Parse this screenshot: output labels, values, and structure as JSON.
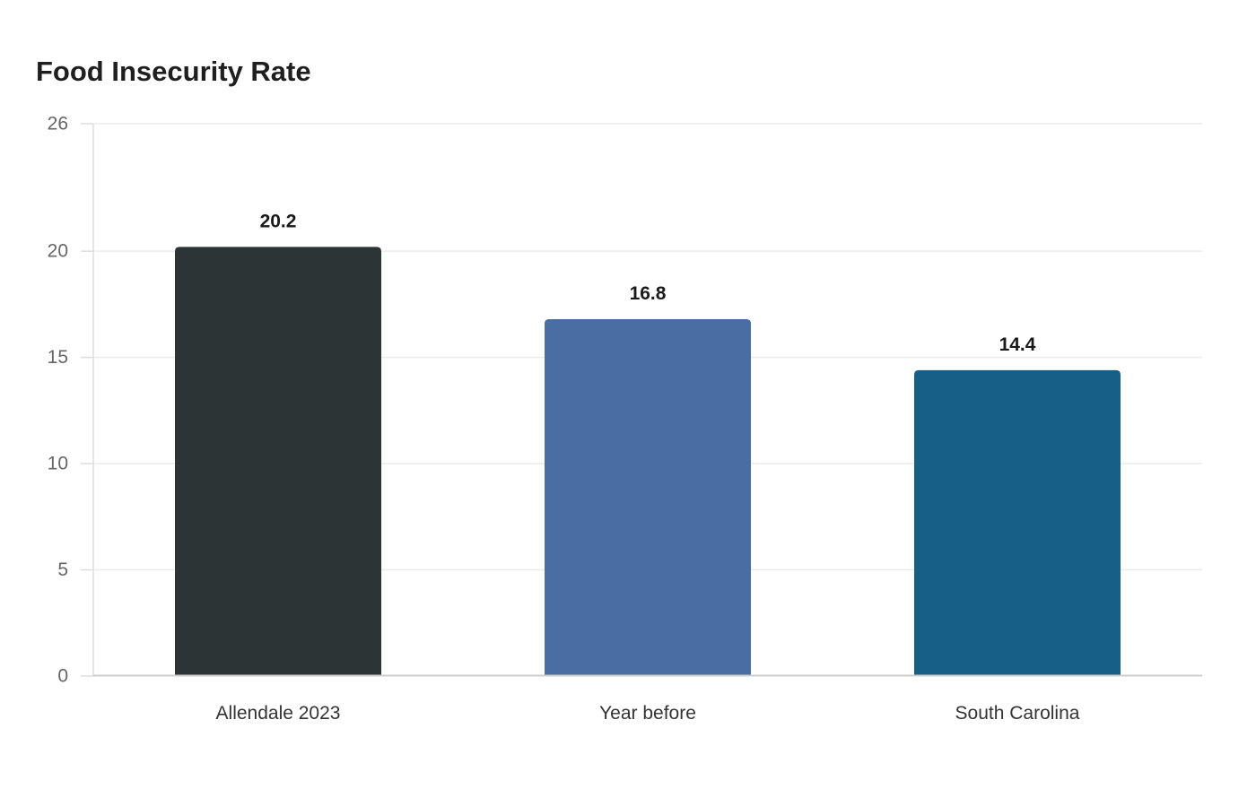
{
  "chart_data": {
    "type": "bar",
    "title": "Food Insecurity Rate",
    "xlabel": "",
    "ylabel": "",
    "categories": [
      "Allendale 2023",
      "Year before",
      "South Carolina"
    ],
    "values": [
      20.2,
      16.8,
      14.4
    ],
    "data_labels": [
      "20.2",
      "16.8",
      "14.4"
    ],
    "colors": [
      "#2d3436",
      "#4a6da3",
      "#175f87"
    ],
    "yticks": [
      0,
      5,
      10,
      15,
      20,
      26
    ],
    "ylim": [
      0,
      26
    ],
    "grid": true,
    "legend": "none"
  }
}
